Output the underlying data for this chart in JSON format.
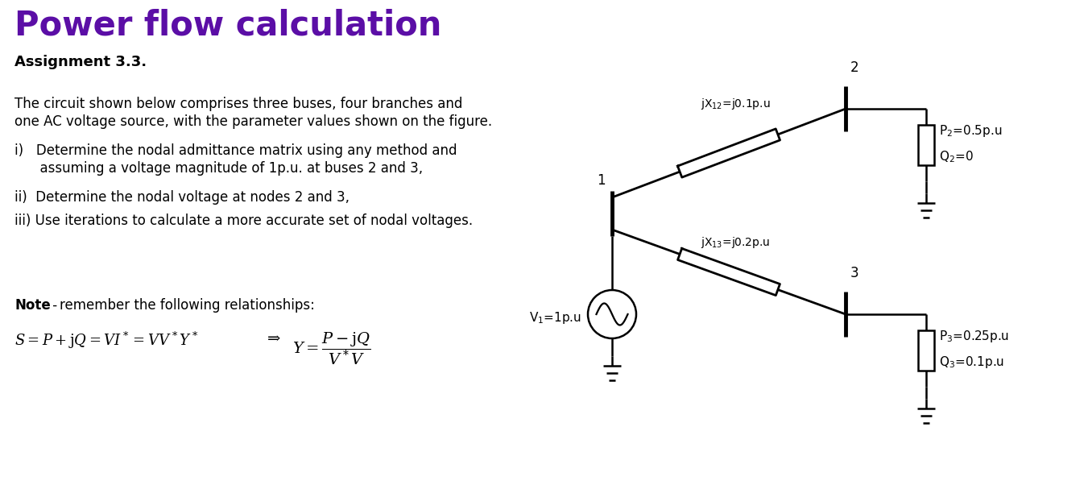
{
  "title": "Power flow calculation",
  "title_color": "#5B0EA6",
  "title_fontsize": 30,
  "title_fontweight": "bold",
  "bg_color": "#ffffff",
  "assignment": "Assignment 3.3.",
  "body_text_1a": "The circuit shown below comprises three buses, four branches and",
  "body_text_1b": "one AC voltage source, with the parameter values shown on the figure.",
  "item_i_a": "i)   Determine the nodal admittance matrix using any method and",
  "item_i_b": "      assuming a voltage magnitude of 1p.u. at buses 2 and 3,",
  "item_ii": "ii)  Determine the nodal voltage at nodes 2 and 3,",
  "item_iii": "iii) Use iterations to calculate a more accurate set of nodal voltages.",
  "note_bold": "Note",
  "note_dash": " - ",
  "note_rest": "remember the following relationships:",
  "jX12_label": "jX$_{12}$=j0.1p.u",
  "jX13_label": "jX$_{13}$=j0.2p.u",
  "V1_label": "V$_1$=1p.u",
  "P2_label": "P$_2$=0.5p.u",
  "Q2_label": "Q$_2$=0",
  "P3_label": "P$_3$=0.25p.u",
  "Q3_label": "Q$_3$=0.1p.u",
  "bus1_label": "1",
  "bus2_label": "2",
  "bus3_label": "3"
}
